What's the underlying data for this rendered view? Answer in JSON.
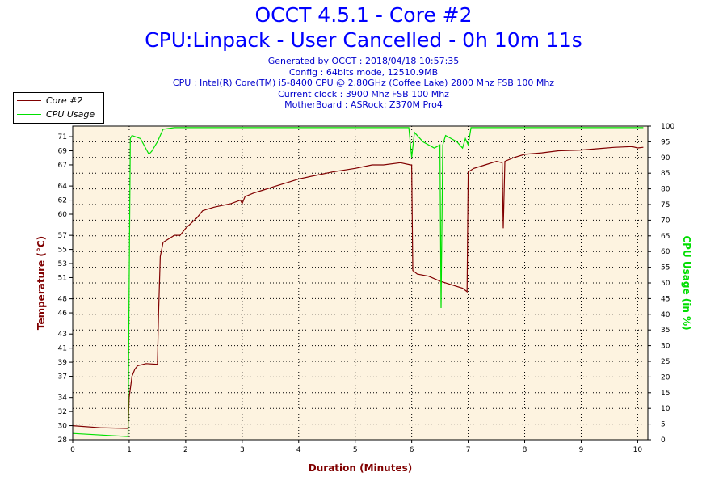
{
  "header": {
    "title": "OCCT 4.5.1 - Core #2",
    "subtitle": "CPU:Linpack - User Cancelled - 0h 10m 11s",
    "info": [
      "Generated by OCCT : 2018/04/18 10:57:35",
      "Config : 64bits mode, 12510.9MB",
      "CPU : Intel(R) Core(TM) i5-8400 CPU @ 2.80GHz (Coffee Lake) 2800 Mhz FSB 100 Mhz",
      "Current clock : 3900 Mhz FSB 100 Mhz",
      "MotherBoard : ASRock: Z370M Pro4"
    ]
  },
  "legend": {
    "items": [
      {
        "label": "Core #2",
        "color": "#800000"
      },
      {
        "label": "CPU Usage",
        "color": "#00e000"
      }
    ]
  },
  "chart_data": {
    "type": "line",
    "xlabel": "Duration (Minutes)",
    "ylabel": "Temperature (°C)",
    "y2label": "CPU Usage (in %)",
    "xlim": [
      0,
      10.18
    ],
    "ylim": [
      28,
      72.5
    ],
    "y2lim": [
      0,
      100
    ],
    "x_ticks": [
      0,
      1,
      2,
      3,
      4,
      5,
      6,
      7,
      8,
      9,
      10
    ],
    "y_ticks": [
      28,
      30,
      32,
      34,
      37,
      39,
      41,
      43,
      46,
      48,
      51,
      53,
      55,
      57,
      60,
      62,
      64,
      67,
      69,
      71
    ],
    "y2_ticks": [
      0,
      5,
      10,
      15,
      20,
      25,
      30,
      35,
      40,
      45,
      50,
      55,
      60,
      65,
      70,
      75,
      80,
      85,
      90,
      95,
      100
    ],
    "grid": true,
    "plot_background": "#fdf3e0",
    "series": [
      {
        "name": "Core #2",
        "axis": "left",
        "color": "#800000",
        "x": [
          0,
          0.5,
          0.98,
          1.0,
          1.05,
          1.1,
          1.15,
          1.3,
          1.5,
          1.52,
          1.55,
          1.6,
          1.7,
          1.8,
          1.9,
          2.0,
          2.2,
          2.3,
          2.5,
          2.8,
          2.97,
          3.0,
          3.05,
          3.2,
          3.4,
          3.6,
          3.8,
          4.0,
          4.3,
          4.6,
          5.0,
          5.3,
          5.5,
          5.8,
          5.98,
          6.0,
          6.02,
          6.1,
          6.3,
          6.5,
          6.7,
          6.9,
          6.98,
          7.0,
          7.1,
          7.3,
          7.5,
          7.6,
          7.62,
          7.65,
          7.8,
          8.0,
          8.3,
          8.6,
          9.0,
          9.3,
          9.6,
          9.9,
          10.0,
          10.1
        ],
        "values": [
          30,
          29.7,
          29.6,
          34,
          37,
          38,
          38.5,
          38.8,
          38.7,
          46,
          54,
          56,
          56.5,
          57,
          57,
          58,
          59.5,
          60.5,
          61,
          61.5,
          62,
          61.5,
          62.5,
          63,
          63.5,
          64,
          64.5,
          65,
          65.5,
          66,
          66.5,
          67,
          67,
          67.3,
          67,
          67,
          52,
          51.5,
          51.2,
          50.5,
          50,
          49.5,
          49,
          66,
          66.5,
          67,
          67.5,
          67.3,
          58,
          67.5,
          68,
          68.5,
          68.7,
          69,
          69.1,
          69.3,
          69.5,
          69.6,
          69.4,
          69.5
        ]
      },
      {
        "name": "CPU Usage",
        "axis": "right",
        "color": "#00e000",
        "x": [
          0,
          0.5,
          0.98,
          1.0,
          1.02,
          1.05,
          1.2,
          1.35,
          1.4,
          1.5,
          1.6,
          1.8,
          2.5,
          3.0,
          4.0,
          5.0,
          5.95,
          6.0,
          6.05,
          6.2,
          6.4,
          6.5,
          6.52,
          6.55,
          6.6,
          6.8,
          6.9,
          6.95,
          7.0,
          7.05,
          8.0,
          9.0,
          10.0,
          10.1
        ],
        "values": [
          2,
          1.5,
          1,
          50,
          96,
          97,
          96,
          91,
          92,
          95,
          99,
          99.5,
          99.5,
          99.5,
          99.5,
          99.5,
          99.5,
          90,
          98,
          95,
          93,
          94,
          42,
          94,
          97,
          95,
          93,
          96,
          94,
          99.5,
          99.5,
          99.5,
          99.5,
          99.5
        ]
      }
    ]
  }
}
